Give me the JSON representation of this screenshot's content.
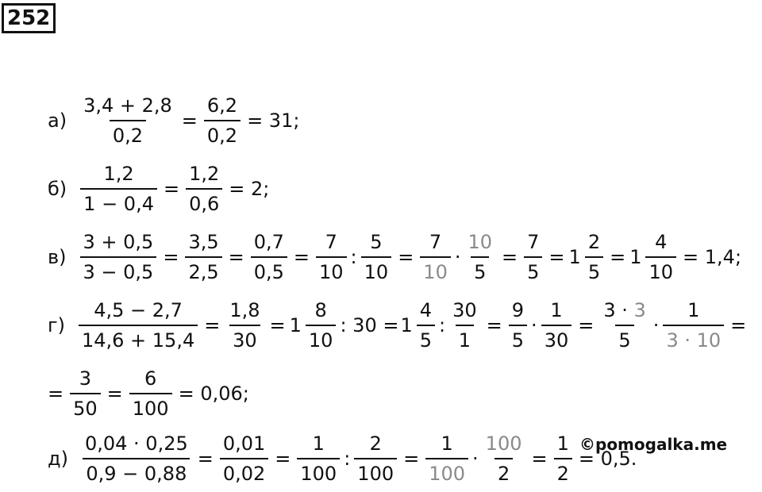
{
  "problem_number": "252",
  "watermark": "©pomogalka.me",
  "a": {
    "label": "а)",
    "f1_num": "3,4 + 2,8",
    "f1_den": "0,2",
    "eq1": "=",
    "f2_num": "6,2",
    "f2_den": "0,2",
    "tail": "= 31;"
  },
  "b": {
    "label": "б)",
    "f1_num": "1,2",
    "f1_den": "1 − 0,4",
    "eq1": "=",
    "f2_num": "1,2",
    "f2_den": "0,6",
    "tail": "= 2;"
  },
  "v": {
    "label": "в)",
    "f1_num": "3 + 0,5",
    "f1_den": "3 − 0,5",
    "eq1": "=",
    "f2_num": "3,5",
    "f2_den": "2,5",
    "eq2": "=",
    "f3_num": "0,7",
    "f3_den": "0,5",
    "eq3": "=",
    "f4_num": "7",
    "f4_den": "10",
    "colon1": ":",
    "f5_num": "5",
    "f5_den": "10",
    "eq4": "=",
    "f6_num": "7",
    "f6_den": "10",
    "dot1": "·",
    "f7_num": "10",
    "f7_den": "5",
    "eq5": "=",
    "f8_num": "7",
    "f8_den": "5",
    "eq6": "=",
    "m1_whole": "1",
    "m1_num": "2",
    "m1_den": "5",
    "eq7": "=",
    "m2_whole": "1",
    "m2_num": "4",
    "m2_den": "10",
    "tail": "= 1,4;"
  },
  "g": {
    "label": "г)",
    "f1_num": "4,5 − 2,7",
    "f1_den": "14,6 + 15,4",
    "eq1": "=",
    "f2_num": "1,8",
    "f2_den": "30",
    "eq2": "=",
    "m1_whole": "1",
    "m1_num": "8",
    "m1_den": "10",
    "colon1": ": 30 =",
    "m2_whole": "1",
    "m2_num": "4",
    "m2_den": "5",
    "colon2": ":",
    "f3_num": "30",
    "f3_den": "1",
    "eq3": "=",
    "f4_num": "9",
    "f4_den": "5",
    "dot1": "·",
    "f5_num": "1",
    "f5_den": "30",
    "eq4": "=",
    "f6_num_a": "3 ·",
    "f6_num_b": "3",
    "f6_den": "5",
    "dot2": "·",
    "f7_num": "1",
    "f7_den": "3 · 10",
    "eq5": "=",
    "cont_lead": "=",
    "f8_num": "3",
    "f8_den": "50",
    "eq6": "=",
    "f9_num": "6",
    "f9_den": "100",
    "tail": "= 0,06;"
  },
  "d": {
    "label": "д)",
    "f1_num": "0,04 · 0,25",
    "f1_den": "0,9 − 0,88",
    "eq1": "=",
    "f2_num": "0,01",
    "f2_den": "0,02",
    "eq2": "=",
    "f3_num": "1",
    "f3_den": "100",
    "colon1": ":",
    "f4_num": "2",
    "f4_den": "100",
    "eq3": "=",
    "f5_num": "1",
    "f5_den": "100",
    "dot1": "·",
    "f6_num": "100",
    "f6_den": "2",
    "eq4": "=",
    "f7_num": "1",
    "f7_den": "2",
    "tail": "= 0,5."
  },
  "colors": {
    "text": "#111111",
    "highlight_gray": "#8a8a8a"
  }
}
